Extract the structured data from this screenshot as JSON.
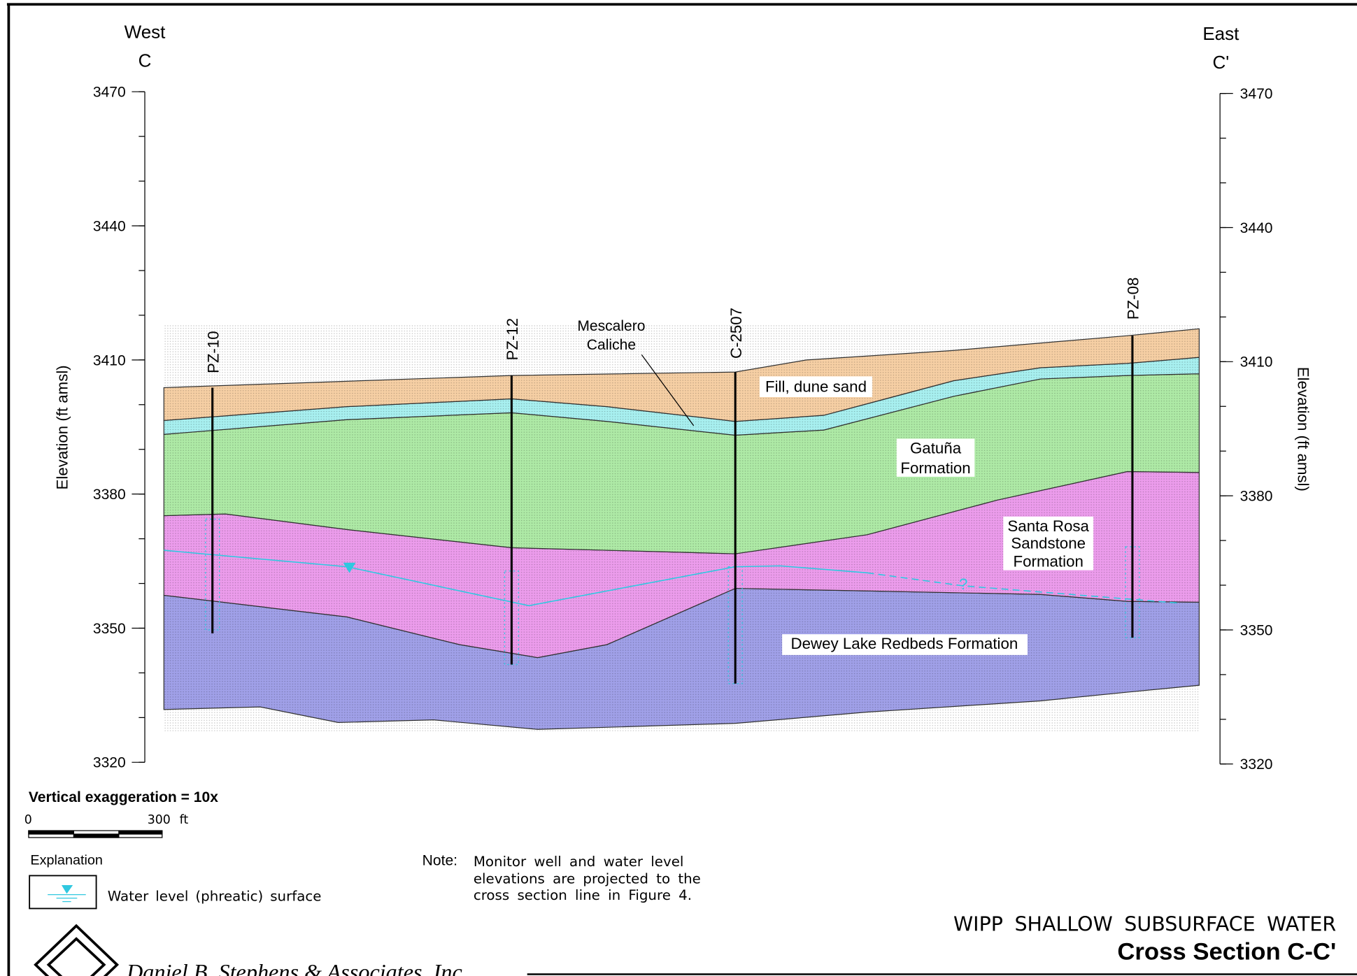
{
  "header": {
    "west": "West",
    "west_mark": "C",
    "east": "East",
    "east_mark": "C'"
  },
  "axis": {
    "label": "Elevation (ft amsl)",
    "ticks": [
      3470,
      3440,
      3410,
      3380,
      3350,
      3320
    ]
  },
  "wells": [
    "PZ-10",
    "PZ-12",
    "C-2507",
    "PZ-08"
  ],
  "formations": {
    "fill": "Fill, dune sand",
    "caliche": [
      "Mescalero",
      "Caliche"
    ],
    "gatuna": [
      "Gatuña",
      "Formation"
    ],
    "santa_rosa": [
      "Santa Rosa",
      "Sandstone",
      "Formation"
    ],
    "dewey": "Dewey Lake Redbeds Formation",
    "unknown": "?"
  },
  "scale": {
    "exaggeration": "Vertical exaggeration = 10x",
    "zero": "0",
    "distance": "300",
    "unit": "ft"
  },
  "explanation": {
    "title": "Explanation",
    "water_level": "Water level (phreatic) surface"
  },
  "note": {
    "label": "Note:",
    "lines": [
      "Monitor well and water level",
      "elevations are projected to the",
      "cross section line in Figure 4."
    ]
  },
  "title": {
    "line1": "WIPP SHALLOW SUBSURFACE WATER",
    "line2": "Cross Section C-C'"
  },
  "company": "Daniel B. Stephens & Associates, Inc."
}
